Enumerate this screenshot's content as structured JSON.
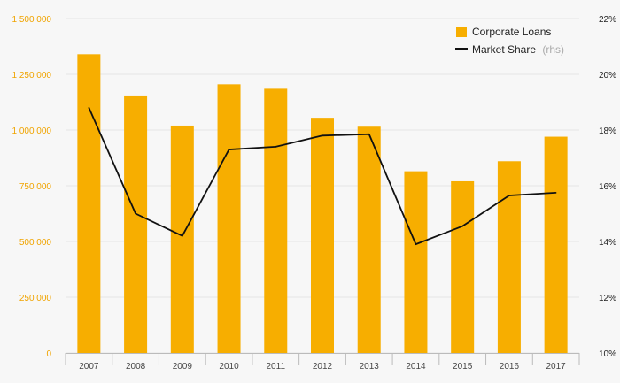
{
  "chart_data": {
    "type": "bar",
    "categories": [
      "2007",
      "2008",
      "2009",
      "2010",
      "2011",
      "2012",
      "2013",
      "2014",
      "2015",
      "2016",
      "2017"
    ],
    "series": [
      {
        "name": "Corporate Loans",
        "type": "bar",
        "axis": "left",
        "values": [
          1340000,
          1155000,
          1020000,
          1205000,
          1185000,
          1055000,
          1015000,
          815000,
          770000,
          860000,
          970000
        ]
      },
      {
        "name": "Market Share",
        "type": "line",
        "axis": "right",
        "values": [
          18.8,
          15.0,
          14.2,
          17.3,
          17.4,
          17.8,
          17.85,
          13.9,
          14.55,
          15.65,
          15.75
        ]
      }
    ],
    "legend": {
      "bar_label": "Corporate Loans",
      "line_label": "Market Share",
      "line_note": "(rhs)",
      "placement": "top-right"
    },
    "y_left": {
      "range": [
        0,
        1500000
      ],
      "ticks": [
        0,
        250000,
        500000,
        750000,
        1000000,
        1250000,
        1500000
      ],
      "tick_labels": [
        "0",
        "250 000",
        "500 000",
        "750 000",
        "1 000 000",
        "1 250 000",
        "1 500 000"
      ]
    },
    "y_right": {
      "range": [
        10,
        22
      ],
      "ticks": [
        10,
        12,
        14,
        16,
        18,
        20,
        22
      ],
      "tick_labels": [
        "10%",
        "12%",
        "14%",
        "16%",
        "18%",
        "20%",
        "22%"
      ]
    },
    "grid": true,
    "colors": {
      "bar": "#f7ae00",
      "line": "#111111",
      "grid": "#e6e6e6",
      "axis": "#bbbbbb",
      "left_tick": "#f0a400",
      "background": "#f7f7f7"
    }
  }
}
